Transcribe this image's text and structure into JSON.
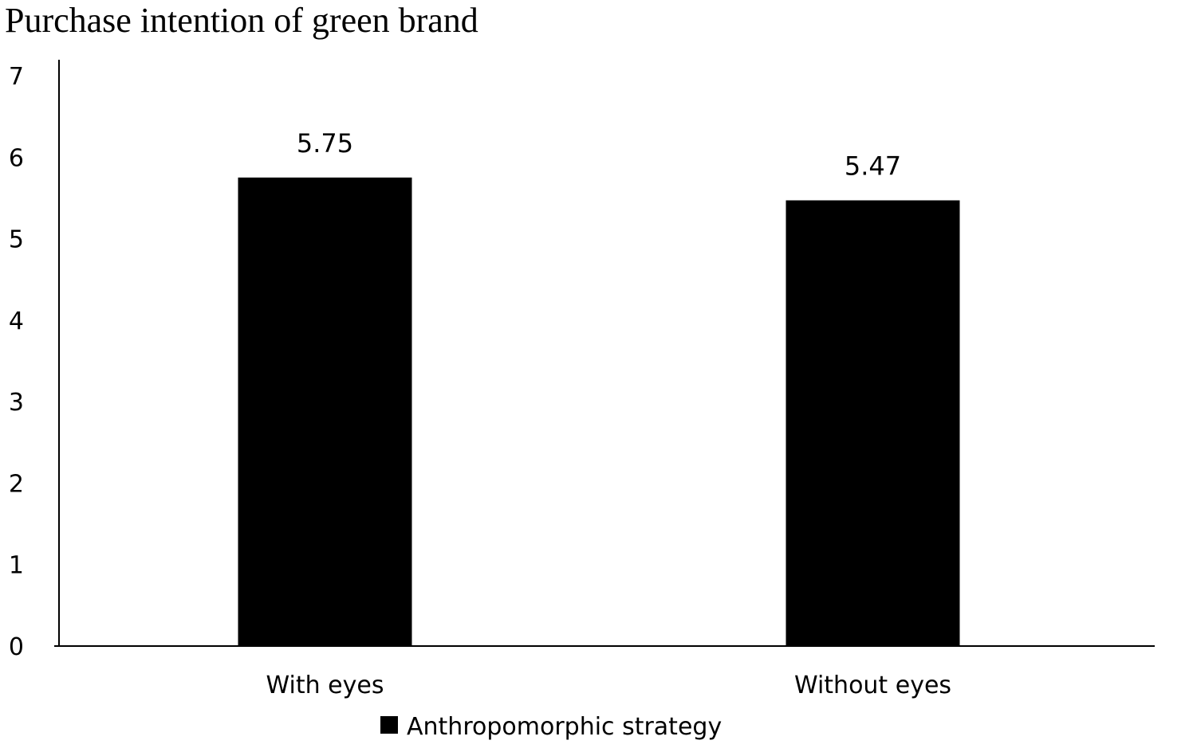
{
  "chart_data": {
    "type": "bar",
    "title": "Purchase intention of green brand",
    "xlabel": "",
    "ylabel": "",
    "categories": [
      "With eyes",
      "Without eyes"
    ],
    "series": [
      {
        "name": "Anthropomorphic strategy",
        "values": [
          5.75,
          5.47
        ],
        "color": "#000000"
      }
    ],
    "data_labels": [
      "5.75",
      "5.47"
    ],
    "ylim": [
      0,
      7
    ],
    "yticks": [
      0,
      1,
      2,
      3,
      4,
      5,
      6,
      7
    ],
    "grid": false,
    "legend_position": "bottom"
  }
}
